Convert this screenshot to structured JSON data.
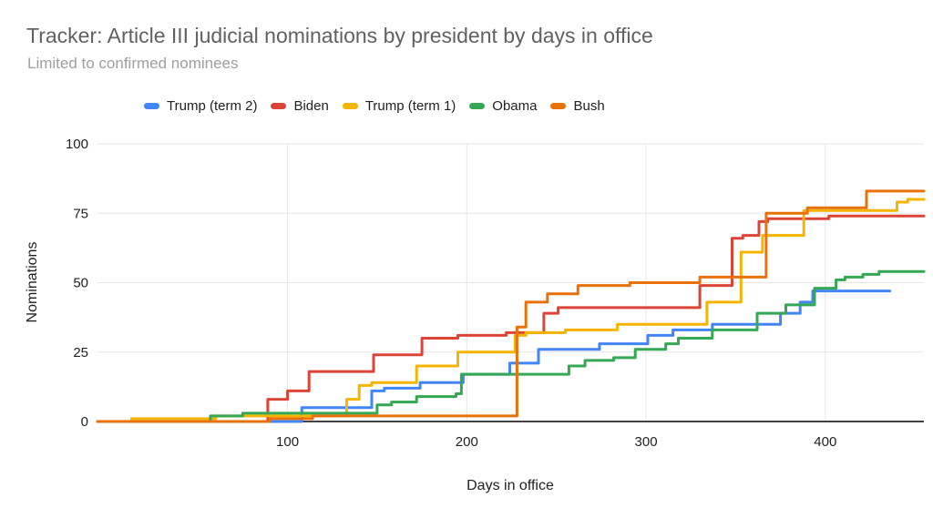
{
  "chart_data": {
    "type": "line",
    "interpolation": "step-after",
    "title": "Tracker: Article III judicial nominations by president by days in office",
    "subtitle": "Limited to confirmed nominees",
    "xlabel": "Days in office",
    "ylabel": "Nominations",
    "x_axis": {
      "min": -6,
      "max": 455,
      "ticks": [
        100,
        200,
        300,
        400
      ]
    },
    "y_axis": {
      "min": 0,
      "max": 100,
      "ticks": [
        0,
        25,
        50,
        75,
        100
      ]
    },
    "grid": true,
    "legend_position": "top",
    "grid_color": "#e6e6e6",
    "axis_line_color": "#424242",
    "tick_label_color": "#202124",
    "series": [
      {
        "name": "Trump (term 2)",
        "color": "#4285F4",
        "points": [
          [
            0,
            0
          ],
          [
            108,
            5
          ],
          [
            147,
            11
          ],
          [
            154,
            12
          ],
          [
            174,
            14
          ],
          [
            198,
            17
          ],
          [
            224,
            21
          ],
          [
            240,
            26
          ],
          [
            274,
            28
          ],
          [
            301,
            31
          ],
          [
            315,
            33
          ],
          [
            337,
            35
          ],
          [
            375,
            39
          ],
          [
            386,
            43
          ],
          [
            393,
            47
          ],
          [
            436,
            47
          ]
        ]
      },
      {
        "name": "Biden",
        "color": "#DB4437",
        "points": [
          [
            0,
            0
          ],
          [
            89,
            8
          ],
          [
            100,
            11
          ],
          [
            112,
            18
          ],
          [
            148,
            24
          ],
          [
            175,
            30
          ],
          [
            195,
            31
          ],
          [
            222,
            32
          ],
          [
            243,
            39
          ],
          [
            251,
            41
          ],
          [
            330,
            49
          ],
          [
            348,
            66
          ],
          [
            354,
            67
          ],
          [
            363,
            72
          ],
          [
            368,
            73
          ],
          [
            402,
            74
          ],
          [
            455,
            74
          ]
        ]
      },
      {
        "name": "Trump (term 1)",
        "color": "#F4B400",
        "points": [
          [
            0,
            0
          ],
          [
            13,
            1
          ],
          [
            60,
            2
          ],
          [
            133,
            8
          ],
          [
            140,
            13
          ],
          [
            147,
            14
          ],
          [
            172,
            20
          ],
          [
            195,
            25
          ],
          [
            227,
            31
          ],
          [
            233,
            32
          ],
          [
            255,
            33
          ],
          [
            284,
            35
          ],
          [
            334,
            43
          ],
          [
            353,
            61
          ],
          [
            365,
            67
          ],
          [
            388,
            76
          ],
          [
            440,
            79
          ],
          [
            446,
            80
          ],
          [
            455,
            80
          ]
        ]
      },
      {
        "name": "Obama",
        "color": "#34A853",
        "points": [
          [
            0,
            0
          ],
          [
            57,
            2
          ],
          [
            75,
            3
          ],
          [
            150,
            6
          ],
          [
            158,
            7
          ],
          [
            172,
            9
          ],
          [
            194,
            10
          ],
          [
            197,
            17
          ],
          [
            257,
            20
          ],
          [
            266,
            22
          ],
          [
            282,
            23
          ],
          [
            294,
            26
          ],
          [
            311,
            28
          ],
          [
            318,
            30
          ],
          [
            337,
            33
          ],
          [
            362,
            39
          ],
          [
            378,
            42
          ],
          [
            394,
            48
          ],
          [
            406,
            51
          ],
          [
            411,
            52
          ],
          [
            421,
            53
          ],
          [
            430,
            54
          ],
          [
            455,
            54
          ]
        ]
      },
      {
        "name": "Bush",
        "color": "#E8710A",
        "points": [
          [
            0,
            0
          ],
          [
            90,
            1
          ],
          [
            114,
            2
          ],
          [
            228,
            34
          ],
          [
            233,
            43
          ],
          [
            245,
            46
          ],
          [
            262,
            49
          ],
          [
            291,
            50
          ],
          [
            330,
            52
          ],
          [
            367,
            75
          ],
          [
            390,
            77
          ],
          [
            423,
            83
          ],
          [
            455,
            83
          ]
        ]
      }
    ]
  }
}
